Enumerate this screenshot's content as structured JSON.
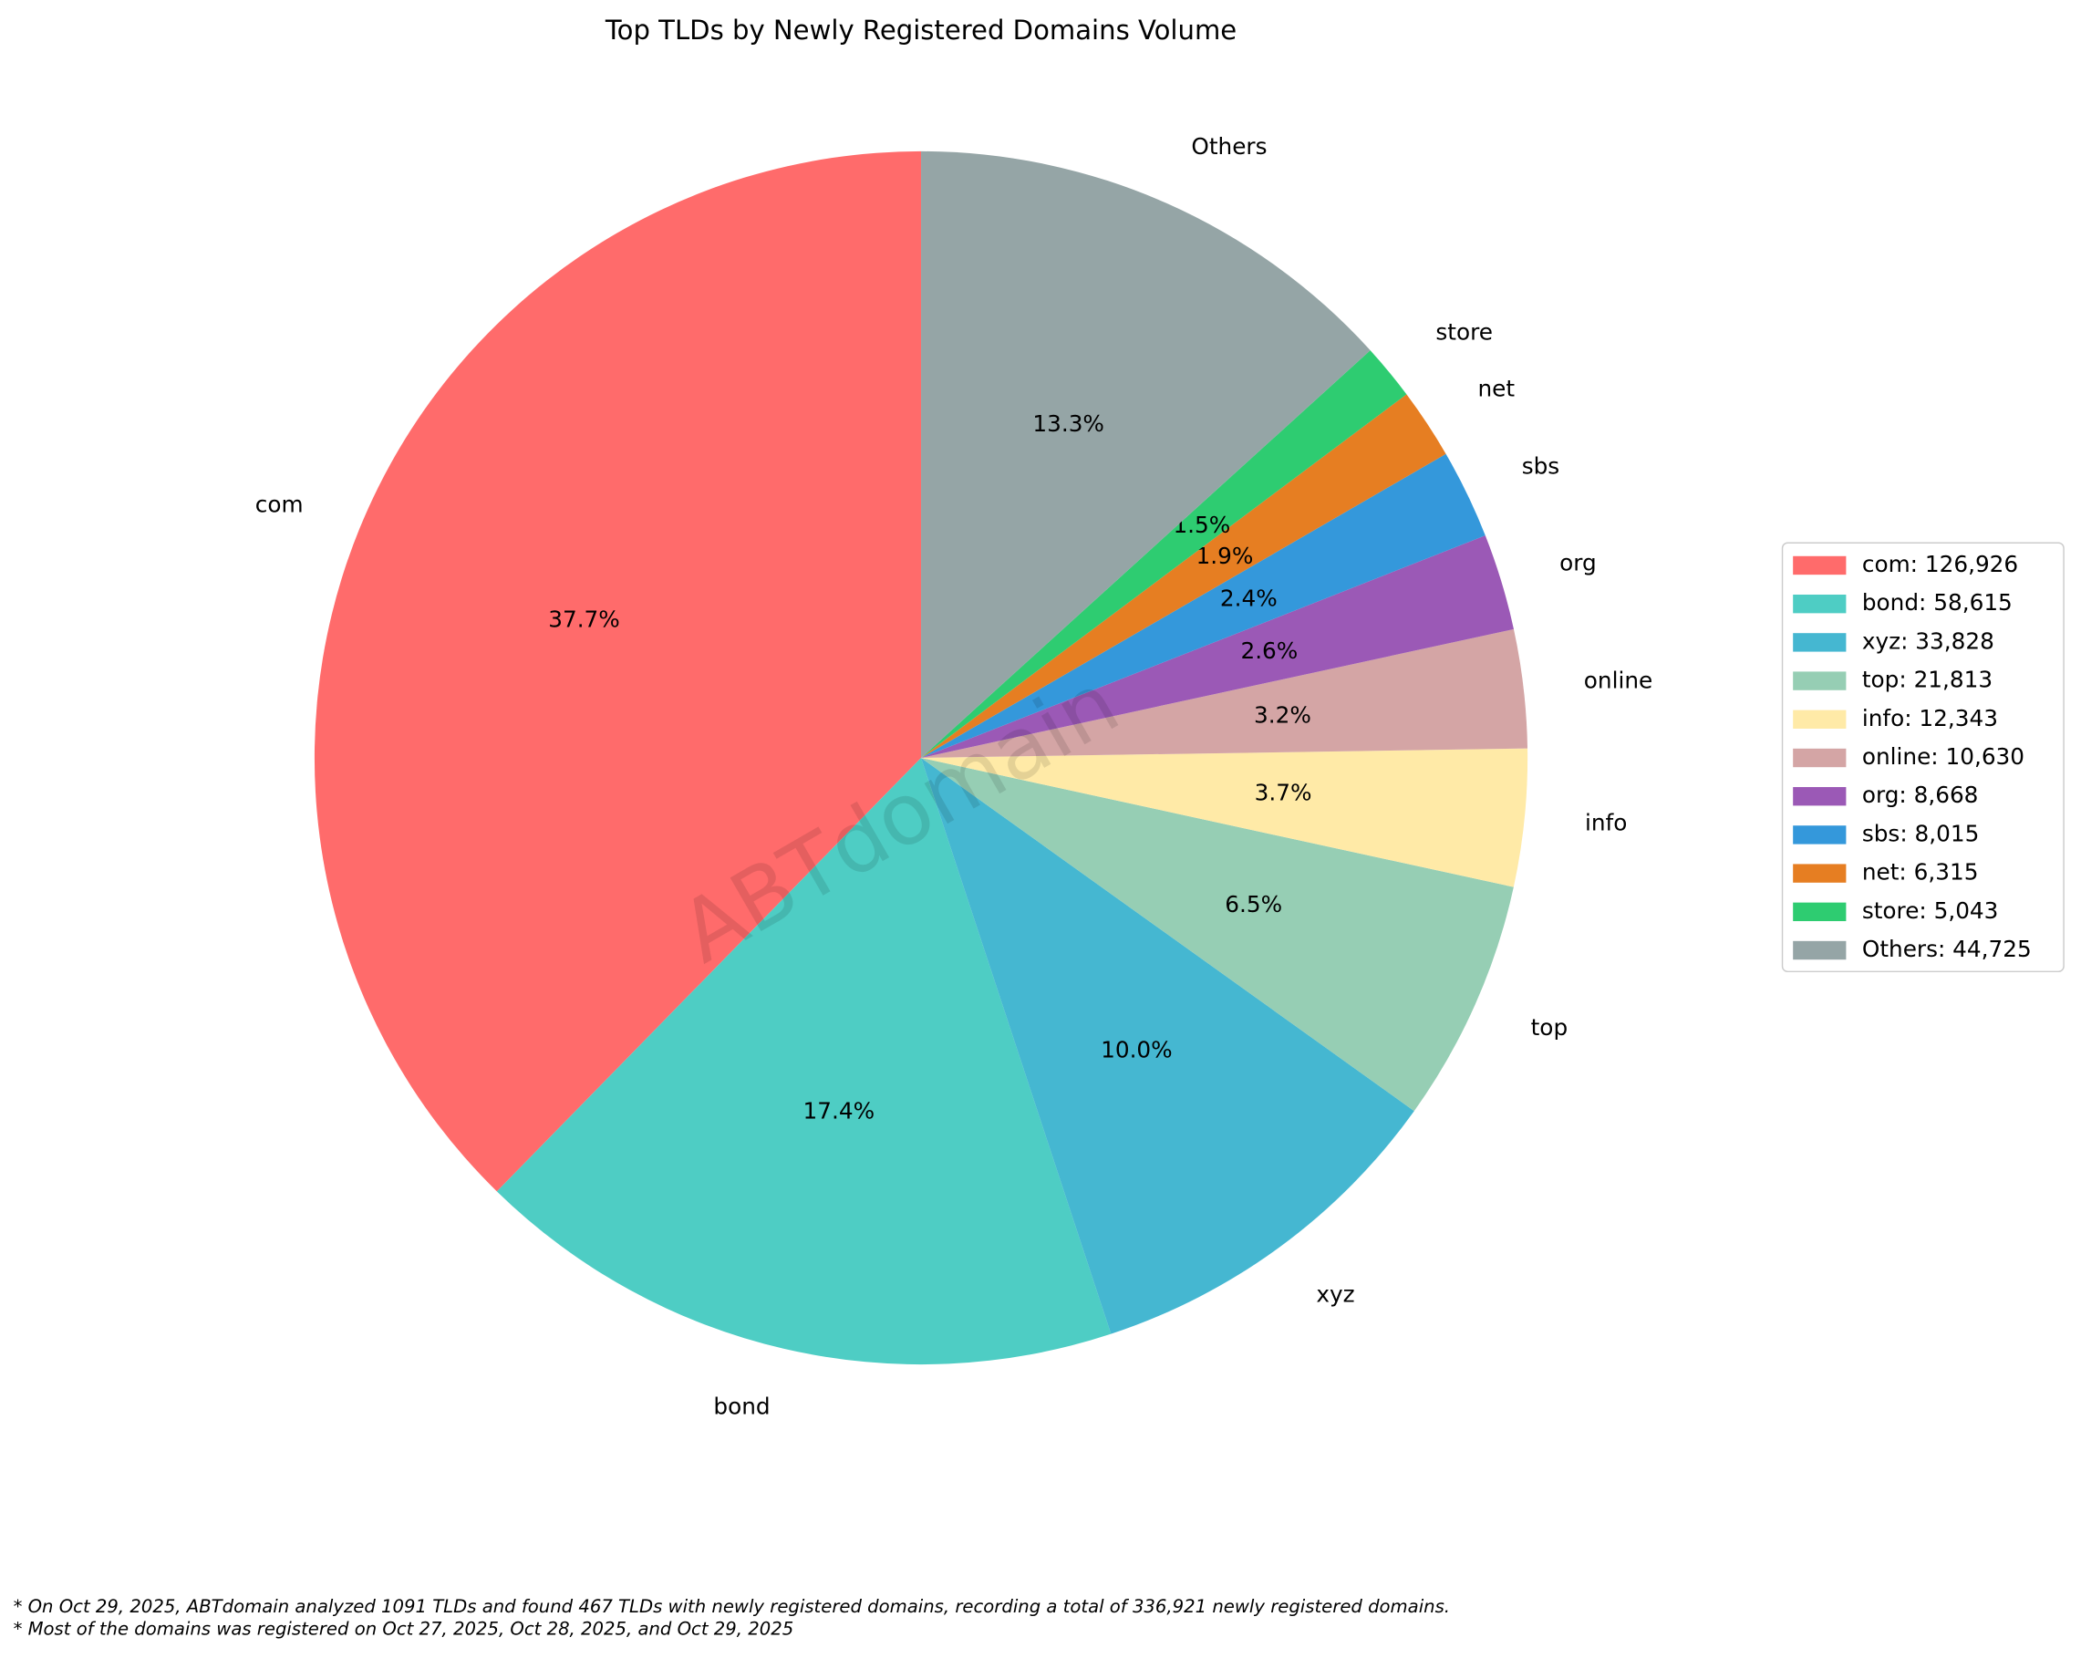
{
  "chart_data": {
    "type": "pie",
    "title": "Top TLDs by Newly Registered Domains Volume",
    "categories": [
      "com",
      "bond",
      "xyz",
      "top",
      "info",
      "online",
      "org",
      "sbs",
      "net",
      "store",
      "Others"
    ],
    "values": [
      126926,
      58615,
      33828,
      21813,
      12343,
      10630,
      8668,
      8015,
      6315,
      5043,
      44725
    ],
    "percent_labels": [
      "37.7%",
      "17.4%",
      "10.0%",
      "6.5%",
      "3.7%",
      "3.2%",
      "2.6%",
      "2.4%",
      "1.9%",
      "1.5%",
      "13.3%"
    ],
    "legend_labels": [
      "com: 126,926",
      "bond: 58,615",
      "xyz: 33,828",
      "top: 21,813",
      "info: 12,343",
      "online: 10,630",
      "org: 8,668",
      "sbs: 8,015",
      "net: 6,315",
      "store: 5,043",
      "Others: 44,725"
    ],
    "colors": [
      "#ff6b6b",
      "#4ecdc4",
      "#45b7d1",
      "#96ceb4",
      "#ffeaa7",
      "#d4a5a5",
      "#9b59b6",
      "#3498db",
      "#e67e22",
      "#2ecc71",
      "#95a5a6"
    ],
    "legend": "right",
    "watermark": "ABTdomain",
    "footnotes": [
      "* On Oct 29, 2025, ABTdomain analyzed 1091 TLDs and found 467 TLDs with newly registered domains, recording a total of 336,921 newly registered domains.",
      "* Most of the domains was registered on Oct 27, 2025, Oct 28, 2025, and Oct 29, 2025"
    ]
  }
}
